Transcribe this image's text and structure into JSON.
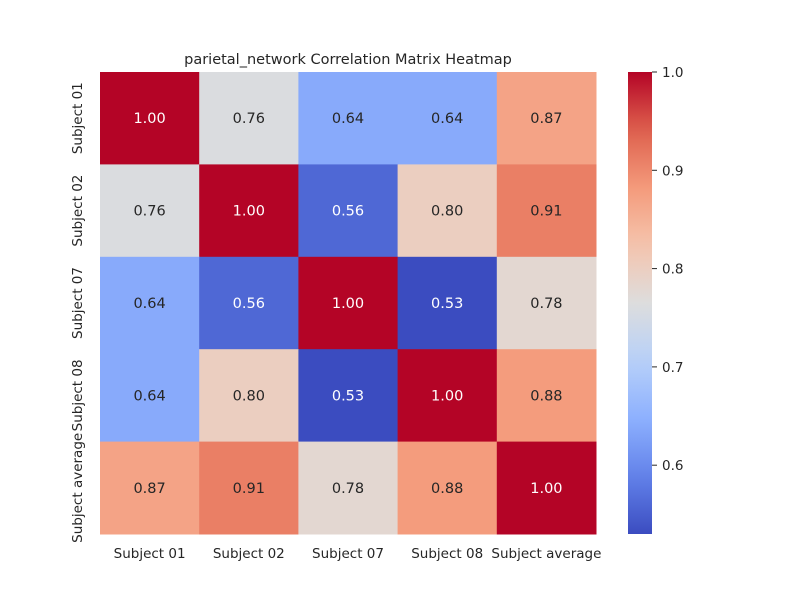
{
  "chart_data": {
    "type": "heatmap",
    "title": "parietal_network Correlation Matrix Heatmap",
    "x_labels": [
      "Subject 01",
      "Subject 02",
      "Subject 07",
      "Subject 08",
      "Subject average"
    ],
    "y_labels": [
      "Subject 01",
      "Subject 02",
      "Subject 07",
      "Subject 08",
      "Subject average"
    ],
    "matrix": [
      [
        1.0,
        0.76,
        0.64,
        0.64,
        0.87
      ],
      [
        0.76,
        1.0,
        0.56,
        0.8,
        0.91
      ],
      [
        0.64,
        0.56,
        1.0,
        0.53,
        0.78
      ],
      [
        0.64,
        0.8,
        0.53,
        1.0,
        0.88
      ],
      [
        0.87,
        0.91,
        0.78,
        0.88,
        1.0
      ]
    ],
    "colormap": "coolwarm",
    "vmin": 0.53,
    "vmax": 1.0,
    "colorbar_ticks": [
      "0.6",
      "0.7",
      "0.8",
      "0.9",
      "1.0"
    ],
    "annotation_format": "2 decimals"
  }
}
